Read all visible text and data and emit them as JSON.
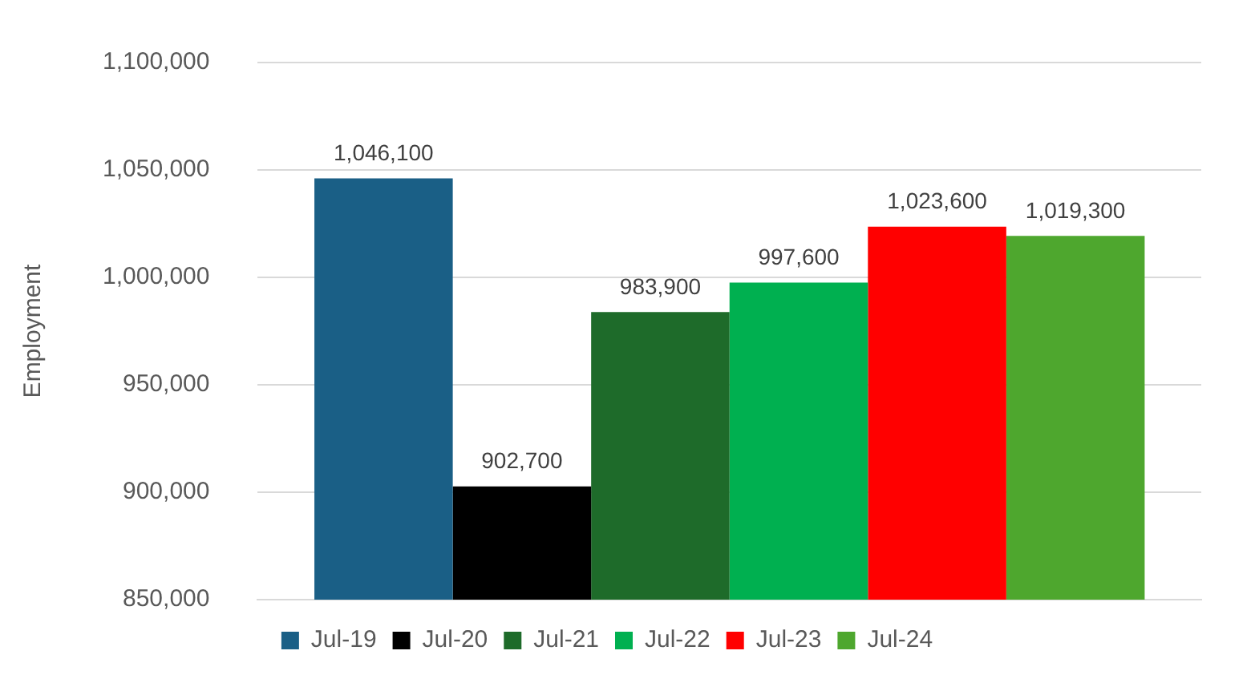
{
  "chart_data": {
    "type": "bar",
    "ylabel": "Employment",
    "categories": [
      null
    ],
    "series": [
      {
        "name": "Jul-19",
        "color": "#1a5f86",
        "values": [
          1046100
        ],
        "value_labels": [
          "1,046,100"
        ]
      },
      {
        "name": "Jul-20",
        "color": "#000000",
        "values": [
          902700
        ],
        "value_labels": [
          "902,700"
        ]
      },
      {
        "name": "Jul-21",
        "color": "#1e6b2a",
        "values": [
          983900
        ],
        "value_labels": [
          "983,900"
        ]
      },
      {
        "name": "Jul-22",
        "color": "#00b050",
        "values": [
          997600
        ],
        "value_labels": [
          "997,600"
        ]
      },
      {
        "name": "Jul-23",
        "color": "#ff0000",
        "values": [
          1023600
        ],
        "value_labels": [
          "1,023,600"
        ]
      },
      {
        "name": "Jul-24",
        "color": "#4ea72e",
        "values": [
          1019300
        ],
        "value_labels": [
          "1,019,300"
        ]
      }
    ],
    "ylim": [
      850000,
      1100000
    ],
    "yticks": [
      {
        "value": 850000,
        "label": "850,000"
      },
      {
        "value": 900000,
        "label": "900,000"
      },
      {
        "value": 950000,
        "label": "950,000"
      },
      {
        "value": 1000000,
        "label": "1,000,000"
      },
      {
        "value": 1050000,
        "label": "1,050,000"
      },
      {
        "value": 1100000,
        "label": "1,100,000"
      }
    ],
    "grid": "y",
    "legend": "bottom",
    "tick_labels": "y"
  }
}
